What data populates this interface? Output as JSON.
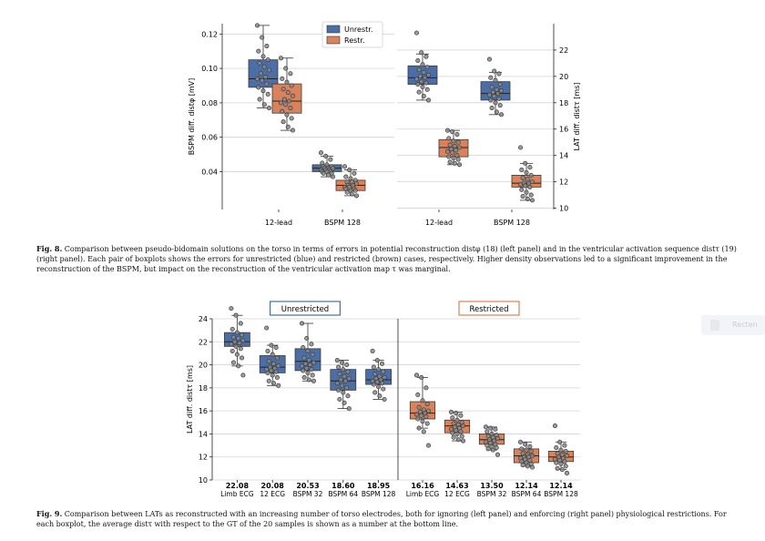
{
  "fig8": {
    "caption_label": "Fig. 8.",
    "caption_text": "Comparison between pseudo-bidomain solutions on the torso in terms of errors in potential reconstruction distφ (18) (left panel) and in the ventricular activation sequence distτ (19) (right panel). Each pair of boxplots shows the errors for unrestricted (blue) and restricted (brown) cases, respectively. Higher density observations led to a significant improvement in the reconstruction of the BSPM, but impact on the reconstruction of the ventricular activation map τ was marginal.",
    "legend": [
      "Unrestr.",
      "Restr."
    ],
    "left_ylabel": "BSPM diff. distφ [mV]",
    "right_ylabel": "LAT diff. distτ [ms]",
    "categories": [
      "12-lead",
      "BSPM 128"
    ]
  },
  "fig9": {
    "caption_label": "Fig. 9.",
    "caption_text": "Comparison between LATs as reconstructed with an increasing number of torso electrodes, both for ignoring (left panel) and enforcing (right panel) physiological restrictions. For each boxplot, the average distτ with respect to the GT of the 20 samples is shown as a number at the bottom line.",
    "panel_titles": [
      "Unrestricted",
      "Restricted"
    ],
    "ylabel": "LAT diff. distτ [ms]",
    "categories": [
      "Limb ECG",
      "12 ECG",
      "BSPM 32",
      "BSPM 64",
      "BSPM 128"
    ],
    "means_unrestricted": [
      "22.08",
      "20.08",
      "20.53",
      "18.60",
      "18.95"
    ],
    "means_restricted": [
      "16.16",
      "14.63",
      "13.50",
      "12.14",
      "12.14"
    ]
  },
  "ghost_button_label": "Recten",
  "chart_data": [
    {
      "type": "box",
      "title": "",
      "ylabel": "BSPM diff. distφ [mV]",
      "categories": [
        "12-lead",
        "BSPM 128"
      ],
      "ylim": [
        0.018,
        0.126
      ],
      "yticks": [
        0.04,
        0.06,
        0.08,
        0.1,
        0.12
      ],
      "legend": "top-right",
      "series": [
        {
          "name": "Unrestr.",
          "color": "#4c6ea6",
          "boxes": [
            {
              "min": 0.077,
              "q1": 0.089,
              "median": 0.094,
              "q3": 0.105,
              "max": 0.125
            },
            {
              "min": 0.037,
              "q1": 0.04,
              "median": 0.042,
              "q3": 0.044,
              "max": 0.049
            }
          ],
          "points": [
            [
              0.125,
              0.118,
              0.113,
              0.11,
              0.107,
              0.105,
              0.103,
              0.101,
              0.099,
              0.097,
              0.095,
              0.094,
              0.093,
              0.091,
              0.089,
              0.087,
              0.085,
              0.082,
              0.079,
              0.077
            ],
            [
              0.051,
              0.049,
              0.047,
              0.045,
              0.044,
              0.043,
              0.043,
              0.042,
              0.042,
              0.042,
              0.041,
              0.041,
              0.041,
              0.04,
              0.04,
              0.04,
              0.039,
              0.039,
              0.038,
              0.037
            ]
          ]
        },
        {
          "name": "Restr.",
          "color": "#d9825b",
          "boxes": [
            {
              "min": 0.064,
              "q1": 0.074,
              "median": 0.081,
              "q3": 0.091,
              "max": 0.106
            },
            {
              "min": 0.026,
              "q1": 0.029,
              "median": 0.032,
              "q3": 0.035,
              "max": 0.041
            }
          ],
          "points": [
            [
              0.106,
              0.1,
              0.097,
              0.094,
              0.092,
              0.09,
              0.088,
              0.086,
              0.084,
              0.082,
              0.081,
              0.08,
              0.079,
              0.077,
              0.075,
              0.073,
              0.071,
              0.069,
              0.066,
              0.064
            ],
            [
              0.043,
              0.041,
              0.039,
              0.037,
              0.036,
              0.035,
              0.034,
              0.034,
              0.033,
              0.032,
              0.032,
              0.031,
              0.031,
              0.03,
              0.03,
              0.029,
              0.029,
              0.028,
              0.027,
              0.026
            ]
          ]
        }
      ]
    },
    {
      "type": "box",
      "title": "",
      "ylabel": "LAT diff. distτ [ms]",
      "categories": [
        "12-lead",
        "BSPM 128"
      ],
      "ylim": [
        9.9,
        24.0
      ],
      "yticks": [
        10,
        12,
        14,
        16,
        18,
        20,
        22
      ],
      "series": [
        {
          "name": "Unrestr.",
          "color": "#4c6ea6",
          "boxes": [
            {
              "min": 18.2,
              "q1": 19.4,
              "median": 19.9,
              "q3": 20.8,
              "max": 21.7
            },
            {
              "min": 17.1,
              "q1": 18.2,
              "median": 18.7,
              "q3": 19.6,
              "max": 20.3
            }
          ],
          "points": [
            [
              23.3,
              21.8,
              21.5,
              21.2,
              20.9,
              20.7,
              20.5,
              20.3,
              20.1,
              20.0,
              19.9,
              19.8,
              19.6,
              19.5,
              19.4,
              19.2,
              19.0,
              18.8,
              18.5,
              18.2
            ],
            [
              21.3,
              20.4,
              20.2,
              19.9,
              19.7,
              19.4,
              19.2,
              19.0,
              18.9,
              18.8,
              18.7,
              18.6,
              18.5,
              18.3,
              18.2,
              18.0,
              17.8,
              17.6,
              17.3,
              17.1
            ]
          ]
        },
        {
          "name": "Restr.",
          "color": "#d9825b",
          "boxes": [
            {
              "min": 13.3,
              "q1": 13.9,
              "median": 14.6,
              "q3": 15.2,
              "max": 15.9
            },
            {
              "min": 10.6,
              "q1": 11.6,
              "median": 11.9,
              "q3": 12.5,
              "max": 13.4
            }
          ],
          "points": [
            [
              15.9,
              15.8,
              15.6,
              15.3,
              15.1,
              15.0,
              14.8,
              14.7,
              14.6,
              14.5,
              14.4,
              14.3,
              14.2,
              14.0,
              13.9,
              13.8,
              13.7,
              13.5,
              13.4,
              13.3
            ],
            [
              14.6,
              13.4,
              13.1,
              12.9,
              12.7,
              12.5,
              12.3,
              12.2,
              12.0,
              11.9,
              11.9,
              11.8,
              11.7,
              11.6,
              11.4,
              11.2,
              11.0,
              10.9,
              10.7,
              10.6
            ]
          ]
        }
      ]
    },
    {
      "type": "box",
      "title": "Unrestricted",
      "ylabel": "LAT diff. distτ [ms]",
      "categories": [
        "Limb ECG",
        "12 ECG",
        "BSPM 32",
        "BSPM 64",
        "BSPM 128"
      ],
      "ylim": [
        10,
        24
      ],
      "yticks": [
        10,
        12,
        14,
        16,
        18,
        20,
        22,
        24
      ],
      "color": "#4c6ea6",
      "means": [
        22.08,
        20.08,
        20.53,
        18.6,
        18.95
      ],
      "boxes": [
        {
          "min": 19.9,
          "q1": 21.6,
          "median": 22.0,
          "q3": 22.8,
          "max": 24.3
        },
        {
          "min": 18.2,
          "q1": 19.3,
          "median": 19.8,
          "q3": 20.8,
          "max": 21.7
        },
        {
          "min": 18.6,
          "q1": 19.5,
          "median": 20.3,
          "q3": 21.4,
          "max": 23.6
        },
        {
          "min": 16.2,
          "q1": 17.8,
          "median": 18.6,
          "q3": 19.6,
          "max": 20.4
        },
        {
          "min": 17.0,
          "q1": 18.3,
          "median": 18.7,
          "q3": 19.6,
          "max": 20.4
        }
      ],
      "points": [
        [
          24.9,
          24.3,
          23.6,
          23.1,
          22.8,
          22.6,
          22.4,
          22.3,
          22.1,
          22.0,
          21.9,
          21.8,
          21.6,
          21.4,
          21.2,
          20.9,
          20.6,
          20.2,
          19.9,
          19.1
        ],
        [
          23.2,
          21.7,
          21.5,
          21.2,
          20.9,
          20.6,
          20.3,
          20.1,
          19.9,
          19.8,
          19.7,
          19.6,
          19.5,
          19.4,
          19.3,
          19.1,
          18.9,
          18.6,
          18.4,
          18.2
        ],
        [
          23.6,
          22.3,
          21.8,
          21.5,
          21.2,
          20.9,
          20.6,
          20.4,
          20.2,
          20.1,
          20.0,
          19.9,
          19.7,
          19.6,
          19.5,
          19.3,
          19.1,
          18.9,
          18.7,
          18.6
        ],
        [
          20.4,
          20.2,
          20.0,
          19.8,
          19.6,
          19.4,
          19.2,
          19.0,
          18.8,
          18.7,
          18.6,
          18.4,
          18.2,
          18.0,
          17.8,
          17.6,
          17.3,
          17.0,
          16.7,
          16.2
        ],
        [
          21.2,
          20.4,
          20.1,
          19.8,
          19.6,
          19.4,
          19.2,
          19.0,
          18.9,
          18.8,
          18.7,
          18.6,
          18.5,
          18.4,
          18.3,
          18.1,
          17.9,
          17.6,
          17.3,
          17.0
        ]
      ]
    },
    {
      "type": "box",
      "title": "Restricted",
      "categories": [
        "Limb ECG",
        "12 ECG",
        "BSPM 32",
        "BSPM 64",
        "BSPM 128"
      ],
      "ylim": [
        10,
        24
      ],
      "color": "#d9825b",
      "means": [
        16.16,
        14.63,
        13.5,
        12.14,
        12.14
      ],
      "boxes": [
        {
          "min": 14.5,
          "q1": 15.3,
          "median": 15.8,
          "q3": 16.8,
          "max": 18.9
        },
        {
          "min": 13.4,
          "q1": 14.1,
          "median": 14.7,
          "q3": 15.2,
          "max": 15.9
        },
        {
          "min": 12.6,
          "q1": 13.1,
          "median": 13.5,
          "q3": 14.0,
          "max": 14.6
        },
        {
          "min": 11.2,
          "q1": 11.5,
          "median": 12.1,
          "q3": 12.7,
          "max": 13.3
        },
        {
          "min": 10.9,
          "q1": 11.6,
          "median": 12.0,
          "q3": 12.5,
          "max": 13.3
        }
      ],
      "points": [
        [
          19.1,
          18.9,
          18.0,
          17.4,
          16.9,
          16.6,
          16.3,
          16.1,
          16.0,
          15.9,
          15.8,
          15.7,
          15.6,
          15.5,
          15.3,
          15.1,
          14.9,
          14.5,
          14.2,
          13.0
        ],
        [
          15.9,
          15.8,
          15.6,
          15.4,
          15.2,
          15.0,
          14.9,
          14.8,
          14.7,
          14.6,
          14.5,
          14.4,
          14.3,
          14.2,
          14.1,
          14.0,
          13.8,
          13.7,
          13.5,
          13.4
        ],
        [
          14.6,
          14.5,
          14.4,
          14.2,
          14.0,
          13.9,
          13.8,
          13.7,
          13.6,
          13.5,
          13.4,
          13.3,
          13.2,
          13.1,
          13.0,
          12.9,
          12.8,
          12.7,
          12.6,
          12.2
        ],
        [
          13.3,
          13.1,
          12.9,
          12.7,
          12.6,
          12.5,
          12.3,
          12.2,
          12.1,
          12.0,
          12.0,
          11.9,
          11.8,
          11.7,
          11.6,
          11.5,
          11.4,
          11.3,
          11.2,
          11.1
        ],
        [
          14.7,
          13.3,
          13.0,
          12.8,
          12.6,
          12.5,
          12.3,
          12.2,
          12.1,
          12.0,
          11.9,
          11.8,
          11.7,
          11.6,
          11.5,
          11.4,
          11.2,
          11.0,
          10.9,
          10.6
        ]
      ]
    }
  ]
}
